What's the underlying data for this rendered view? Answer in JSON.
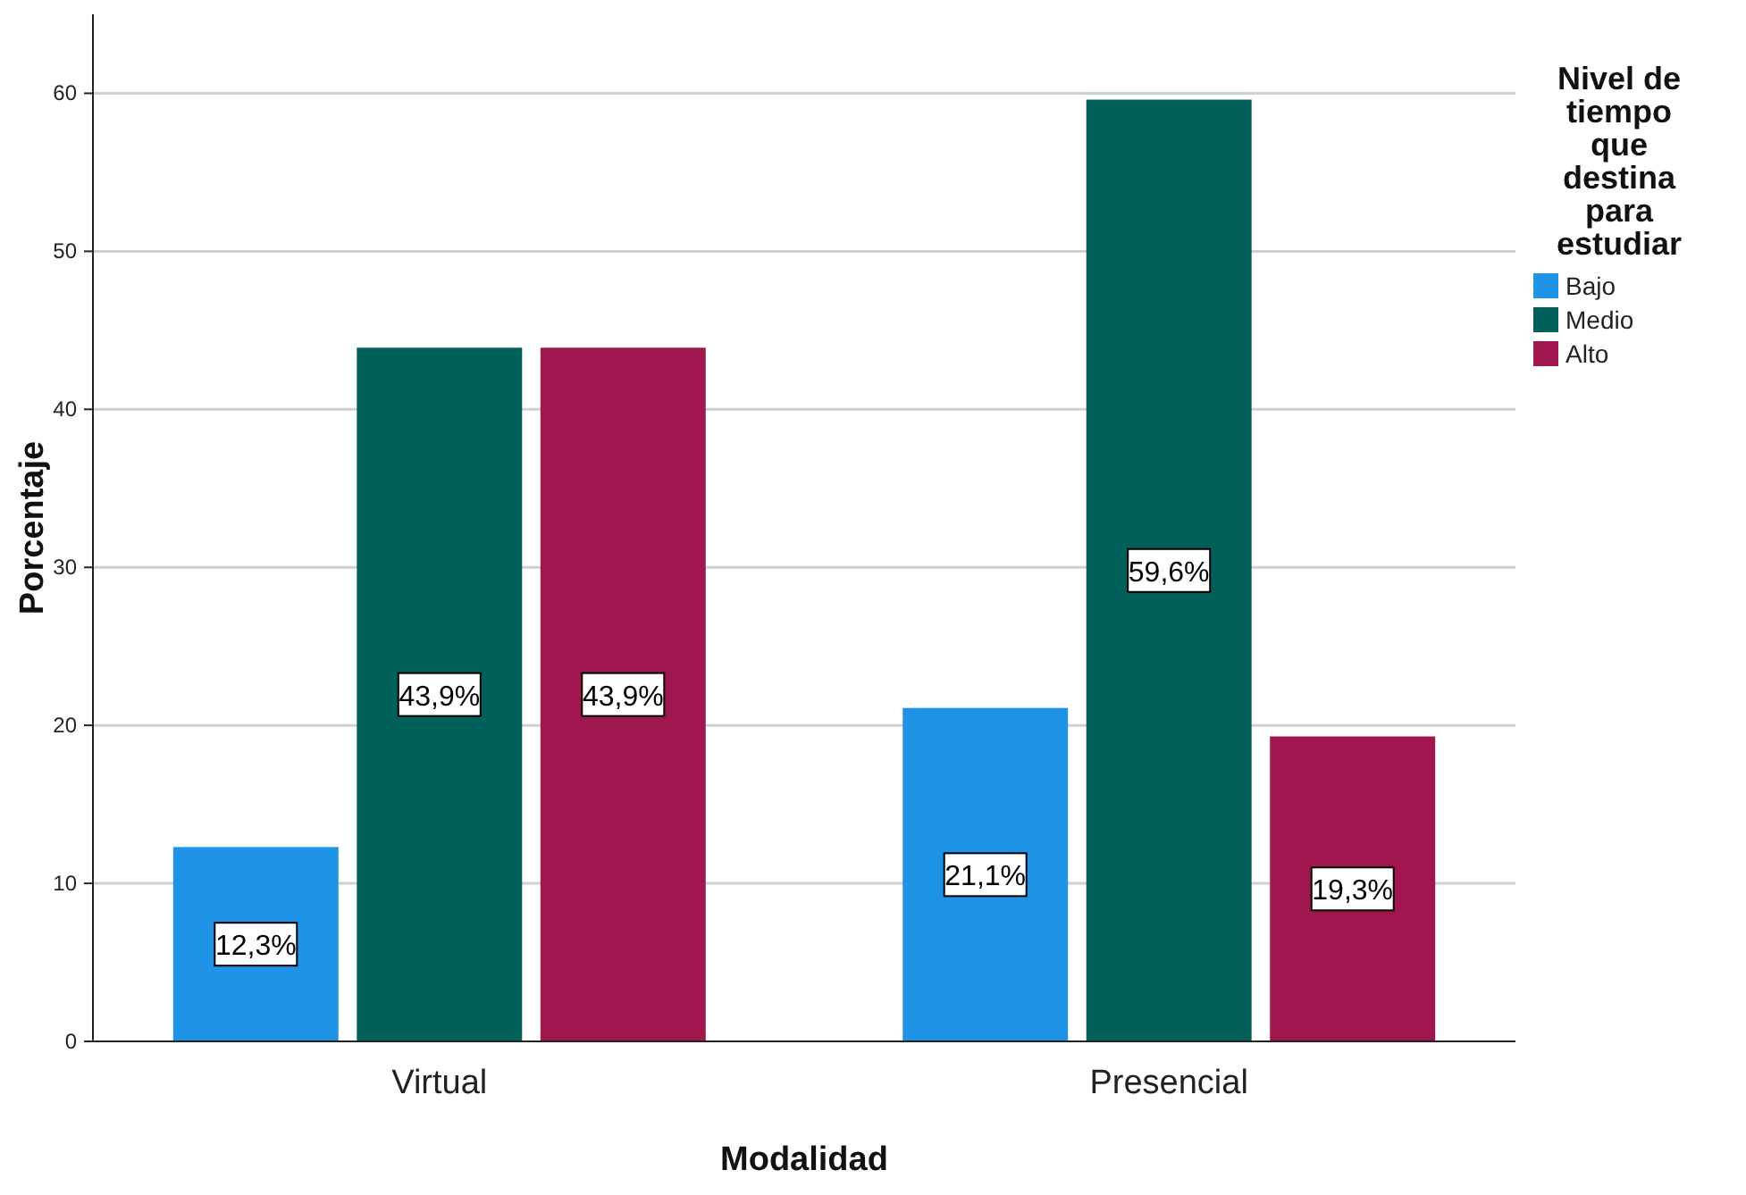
{
  "chart_data": {
    "type": "bar",
    "xlabel": "Modalidad",
    "ylabel": "Porcentaje",
    "legend_title": "Nivel de tiempo que destina para estudiar",
    "categories": [
      "Virtual",
      "Presencial"
    ],
    "series": [
      {
        "name": "Bajo",
        "color": "#1f94e6",
        "values": [
          12.3,
          21.1
        ],
        "value_labels": [
          "12,3%",
          "21,1%"
        ]
      },
      {
        "name": "Medio",
        "color": "#02605a",
        "values": [
          43.9,
          59.6
        ],
        "value_labels": [
          "43,9%",
          "59,6%"
        ]
      },
      {
        "name": "Alto",
        "color": "#a0174e",
        "values": [
          43.9,
          19.3
        ],
        "value_labels": [
          "43,9%",
          "19,3%"
        ]
      }
    ],
    "ylim": [
      0,
      65
    ],
    "yticks": [
      0,
      10,
      20,
      30,
      40,
      50,
      60
    ],
    "grid": "y",
    "legend": "top right"
  }
}
